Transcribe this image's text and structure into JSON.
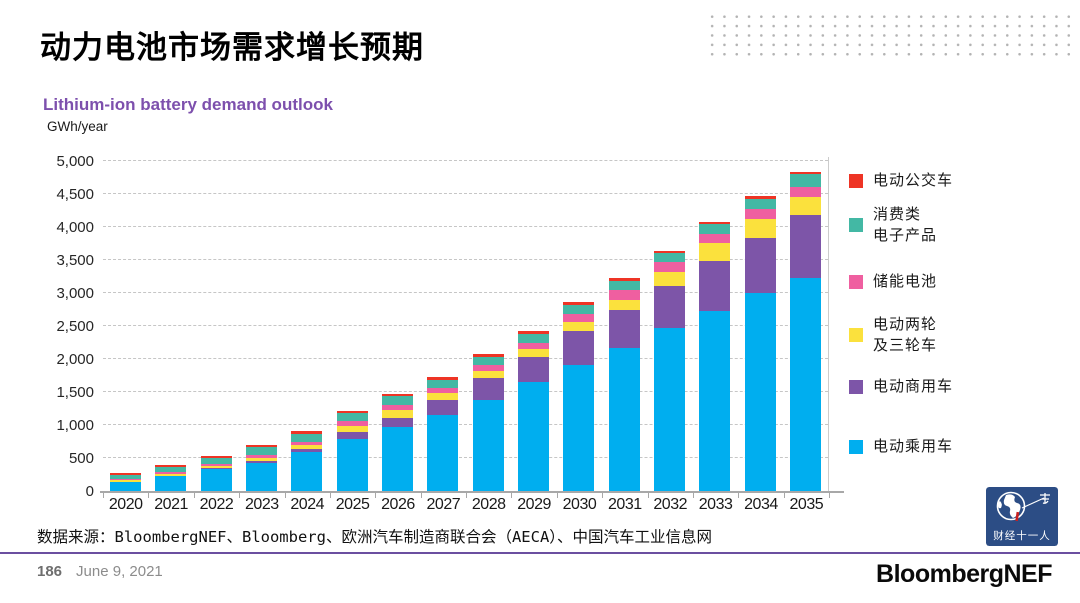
{
  "header": {
    "title": "动力电池市场需求增长预期"
  },
  "chart": {
    "subtitle": "Lithium-ion battery demand outlook",
    "unit_label": "GWh/year"
  },
  "chart_data": {
    "type": "bar",
    "stacked": true,
    "title": "Lithium-ion battery demand outlook",
    "ylabel": "GWh/year",
    "ylim": [
      0,
      5000
    ],
    "ytick_interval": 500,
    "yticks": [
      "0",
      "500",
      "1,000",
      "1,500",
      "2,000",
      "2,500",
      "3,000",
      "3,500",
      "4,000",
      "4,500",
      "5,000"
    ],
    "grid": "dashed-horizontal",
    "legend_position": "right",
    "categories": [
      "2020",
      "2021",
      "2022",
      "2023",
      "2024",
      "2025",
      "2026",
      "2027",
      "2028",
      "2029",
      "2030",
      "2031",
      "2032",
      "2033",
      "2034",
      "2035"
    ],
    "series": [
      {
        "key": "passenger_ev",
        "name": "电动乘用车",
        "color": "#00aeef",
        "values": [
          130,
          225,
          330,
          425,
          585,
          790,
          970,
          1150,
          1375,
          1655,
          1910,
          2170,
          2465,
          2735,
          3000,
          3230
        ]
      },
      {
        "key": "commercial_ev",
        "name": "电动商用车",
        "color": "#7d55a8",
        "values": [
          10,
          10,
          15,
          35,
          50,
          105,
          140,
          225,
          330,
          375,
          510,
          570,
          645,
          750,
          840,
          950
        ]
      },
      {
        "key": "two_three_wheeler",
        "name": "电动两轮及三轮车",
        "legend_label": "电动两轮\n及三轮车",
        "color": "#fbe13d",
        "values": [
          20,
          25,
          30,
          45,
          55,
          95,
          120,
          105,
          115,
          125,
          145,
          155,
          215,
          270,
          285,
          275
        ]
      },
      {
        "key": "stationary_storage",
        "name": "储能电池",
        "color": "#ef5fa0",
        "values": [
          20,
          25,
          30,
          45,
          55,
          75,
          80,
          75,
          90,
          90,
          110,
          150,
          150,
          140,
          155,
          155
        ]
      },
      {
        "key": "consumer_electronics",
        "name": "消费类电子产品",
        "legend_label": "消费类\n电子产品",
        "color": "#43b8a4",
        "values": [
          70,
          80,
          90,
          110,
          120,
          120,
          125,
          130,
          125,
          135,
          150,
          145,
          125,
          145,
          150,
          190
        ]
      },
      {
        "key": "e_bus",
        "name": "电动公交车",
        "color": "#ee3425",
        "values": [
          25,
          25,
          30,
          40,
          40,
          35,
          35,
          40,
          40,
          40,
          40,
          35,
          35,
          35,
          40,
          40
        ]
      }
    ]
  },
  "source": {
    "text": "数据来源：BloombergNEF、Bloomberg、欧洲汽车制造商联合会（AECA）、中国汽车工业信息网"
  },
  "footer": {
    "page_number": "186",
    "date": "June 9, 2021",
    "brand": "BloombergNEF"
  },
  "corner_logo": {
    "text": "财经十一人",
    "background": "#2c4d85"
  },
  "colors": {
    "subtitle": "#7d50ad",
    "divider": "#6b4fa0",
    "gridline": "#c6c6c6",
    "axis": "#a8a8a8"
  }
}
